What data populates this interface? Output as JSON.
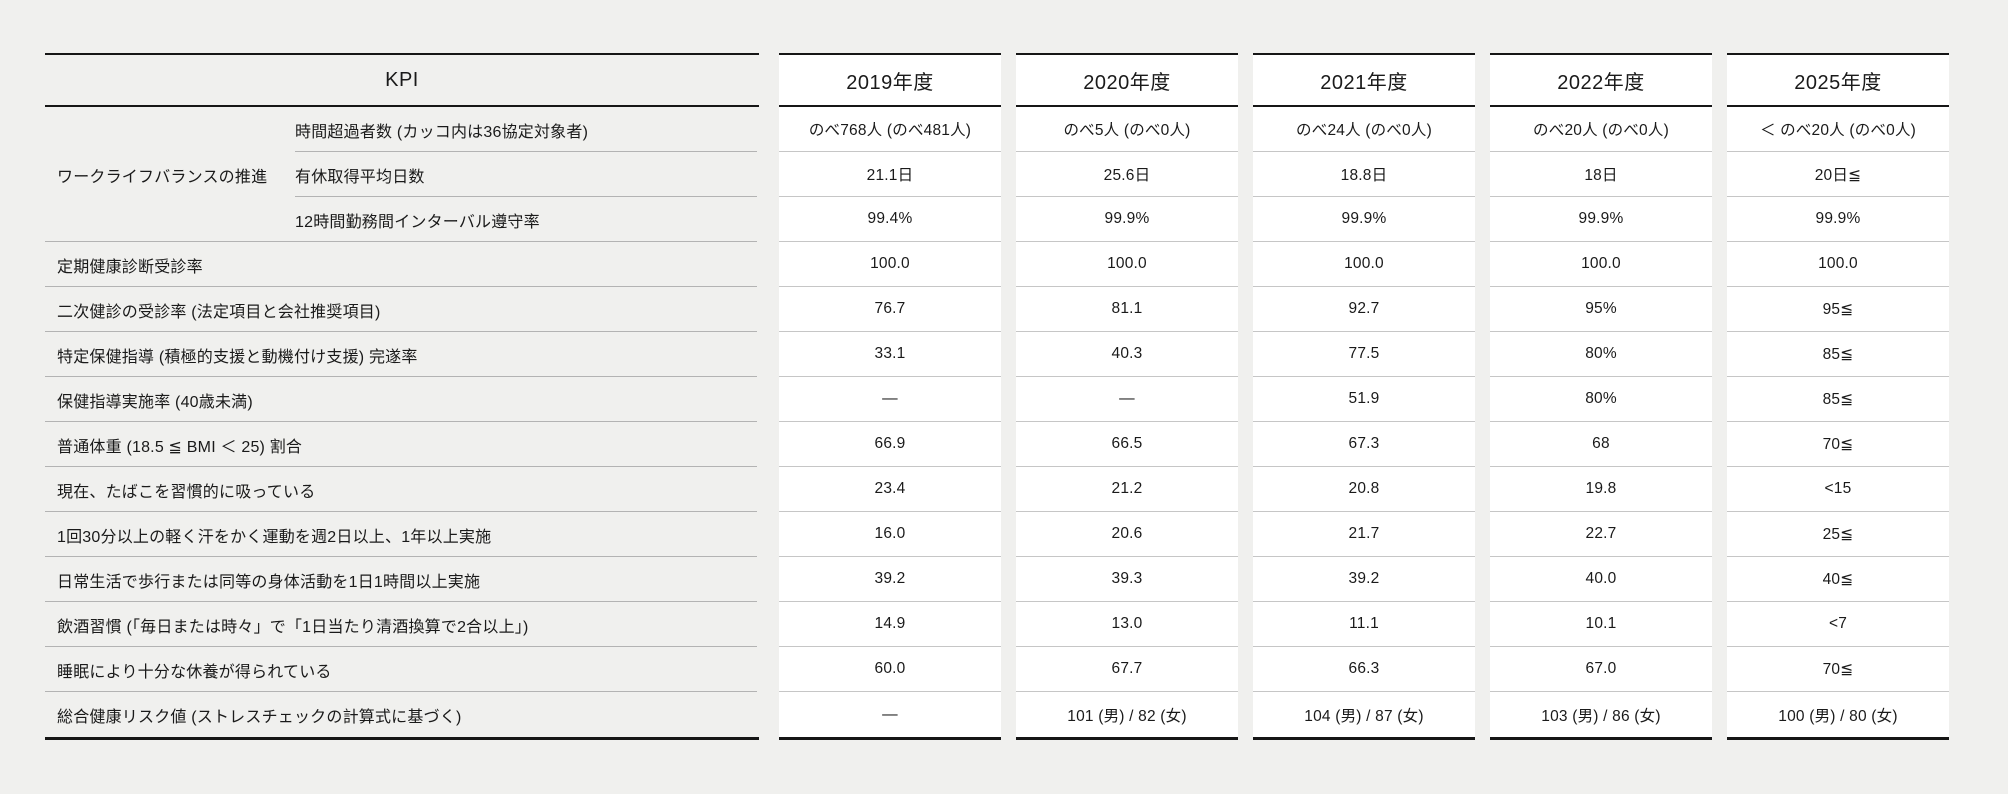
{
  "page": {
    "background": "#f0f0ee",
    "cell_background": "#ffffff",
    "rule_color": "#161616",
    "separator_color": "#b3b3b3"
  },
  "table": {
    "header": {
      "kpi": "KPI",
      "years": [
        "2019年度",
        "2020年度",
        "2021年度",
        "2022年度",
        "2025年度"
      ]
    },
    "group_label": "ワークライフバランスの推進",
    "rows": [
      {
        "group": "ワークライフバランスの推進",
        "label": "時間超過者数 (カッコ内は36協定対象者)",
        "values": [
          "のべ768人 (のべ481人)",
          "のべ5人 (のべ0人)",
          "のべ24人 (のべ0人)",
          "のべ20人 (のべ0人)",
          "＜ のべ20人 (のべ0人)"
        ]
      },
      {
        "group": "ワークライフバランスの推進",
        "label": "有休取得平均日数",
        "values": [
          "21.1日",
          "25.6日",
          "18.8日",
          "18日",
          "20日≦"
        ]
      },
      {
        "group": "ワークライフバランスの推進",
        "label": "12時間勤務間インターバル遵守率",
        "values": [
          "99.4%",
          "99.9%",
          "99.9%",
          "99.9%",
          "99.9%"
        ]
      },
      {
        "label": "定期健康診断受診率",
        "values": [
          "100.0",
          "100.0",
          "100.0",
          "100.0",
          "100.0"
        ]
      },
      {
        "label": "二次健診の受診率 (法定項目と会社推奨項目)",
        "values": [
          "76.7",
          "81.1",
          "92.7",
          "95%",
          "95≦"
        ]
      },
      {
        "label": "特定保健指導 (積極的支援と動機付け支援) 完遂率",
        "values": [
          "33.1",
          "40.3",
          "77.5",
          "80%",
          "85≦"
        ]
      },
      {
        "label": "保健指導実施率 (40歳未満)",
        "values": [
          "—",
          "—",
          "51.9",
          "80%",
          "85≦"
        ]
      },
      {
        "label": "普通体重 (18.5 ≦ BMI ＜ 25) 割合",
        "values": [
          "66.9",
          "66.5",
          "67.3",
          "68",
          "70≦"
        ]
      },
      {
        "label": "現在、たばこを習慣的に吸っている",
        "values": [
          "23.4",
          "21.2",
          "20.8",
          "19.8",
          "<15"
        ]
      },
      {
        "label": "1回30分以上の軽く汗をかく運動を週2日以上、1年以上実施",
        "values": [
          "16.0",
          "20.6",
          "21.7",
          "22.7",
          "25≦"
        ]
      },
      {
        "label": "日常生活で歩行または同等の身体活動を1日1時間以上実施",
        "values": [
          "39.2",
          "39.3",
          "39.2",
          "40.0",
          "40≦"
        ]
      },
      {
        "label": "飲酒習慣 (「毎日または時々」で「1日当たり清酒換算で2合以上」)",
        "values": [
          "14.9",
          "13.0",
          "11.1",
          "10.1",
          "<7"
        ]
      },
      {
        "label": "睡眠により十分な休養が得られている",
        "values": [
          "60.0",
          "67.7",
          "66.3",
          "67.0",
          "70≦"
        ]
      },
      {
        "label": "総合健康リスク値 (ストレスチェックの計算式に基づく)",
        "values": [
          "—",
          "101 (男) / 82 (女)",
          "104 (男) / 87 (女)",
          "103 (男) / 86 (女)",
          "100 (男) / 80 (女)"
        ]
      }
    ]
  }
}
